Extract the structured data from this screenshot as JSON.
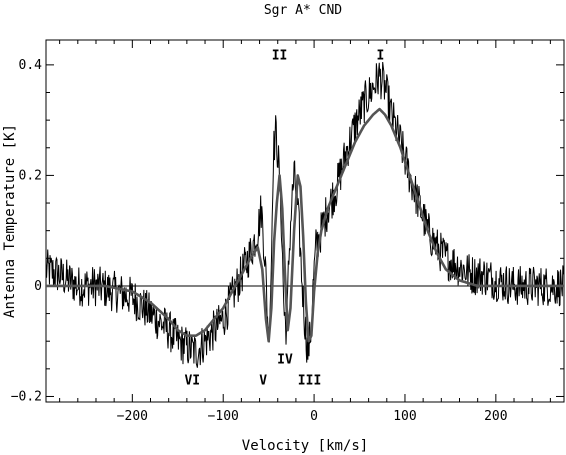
{
  "chart_data": {
    "type": "line",
    "title": "Sgr A* CND",
    "xlabel": "Velocity  [km/s]",
    "ylabel": "Antenna Temperature [K]",
    "xlim": [
      -295,
      275
    ],
    "ylim": [
      -0.21,
      0.445
    ],
    "x_ticks": [
      -200,
      -100,
      0,
      100,
      200
    ],
    "x_tick_labels": [
      "−200",
      "−100",
      "0",
      "100",
      "200"
    ],
    "y_ticks": [
      -0.2,
      0,
      0.2,
      0.4
    ],
    "y_tick_labels": [
      "−0.2",
      "0",
      "0.2",
      "0.4"
    ],
    "zero_line": true,
    "grid": false,
    "series": [
      {
        "role": "observed spectrum",
        "color": "#000000",
        "style": "noisy histogram-like line",
        "x": [
          -295,
          -280,
          -260,
          -240,
          -220,
          -200,
          -180,
          -160,
          -150,
          -140,
          -130,
          -120,
          -110,
          -100,
          -90,
          -80,
          -70,
          -62,
          -58,
          -54,
          -50,
          -47,
          -45,
          -42,
          -39,
          -36,
          -33,
          -30,
          -28,
          -25,
          -22,
          -19,
          -16,
          -13,
          -10,
          -7,
          -4,
          -1,
          2,
          8,
          15,
          25,
          35,
          45,
          55,
          65,
          72,
          78,
          85,
          95,
          105,
          115,
          125,
          135,
          145,
          155,
          165,
          175,
          185,
          200,
          220,
          240,
          260,
          275
        ],
        "y": [
          0.03,
          0.02,
          0.0,
          0.0,
          -0.01,
          -0.02,
          -0.05,
          -0.08,
          -0.1,
          -0.11,
          -0.12,
          -0.1,
          -0.08,
          -0.06,
          -0.02,
          0.02,
          0.06,
          0.1,
          0.14,
          0.05,
          -0.1,
          0.04,
          0.24,
          0.28,
          0.22,
          0.12,
          -0.05,
          -0.08,
          0.04,
          0.14,
          0.2,
          0.16,
          0.09,
          0.0,
          -0.07,
          -0.12,
          -0.09,
          0.0,
          0.07,
          0.1,
          0.14,
          0.18,
          0.24,
          0.29,
          0.33,
          0.36,
          0.38,
          0.36,
          0.31,
          0.26,
          0.2,
          0.15,
          0.1,
          0.07,
          0.05,
          0.04,
          0.03,
          0.02,
          0.02,
          0.01,
          0.0,
          0.0,
          0.0,
          0.0
        ]
      },
      {
        "role": "gaussian fit",
        "color": "#555555",
        "style": "thick smooth line",
        "x": [
          -295,
          -260,
          -230,
          -200,
          -180,
          -160,
          -150,
          -140,
          -130,
          -120,
          -110,
          -100,
          -90,
          -80,
          -70,
          -62,
          -57,
          -53,
          -50,
          -47,
          -44,
          -41,
          -38,
          -35,
          -32,
          -29,
          -26,
          -22,
          -18,
          -15,
          -12,
          -9,
          -6,
          -3,
          0,
          4,
          8,
          15,
          25,
          35,
          45,
          55,
          65,
          72,
          78,
          85,
          95,
          105,
          115,
          125,
          135,
          145,
          160,
          180,
          200,
          230,
          275
        ],
        "y": [
          0.0,
          0.0,
          0.0,
          -0.01,
          -0.03,
          -0.06,
          -0.08,
          -0.09,
          -0.09,
          -0.08,
          -0.06,
          -0.04,
          -0.01,
          0.02,
          0.05,
          0.07,
          0.03,
          -0.06,
          -0.1,
          -0.04,
          0.08,
          0.15,
          0.2,
          0.14,
          0.02,
          -0.08,
          -0.04,
          0.1,
          0.2,
          0.18,
          0.09,
          -0.03,
          -0.1,
          -0.09,
          -0.01,
          0.06,
          0.1,
          0.14,
          0.18,
          0.22,
          0.26,
          0.29,
          0.31,
          0.32,
          0.31,
          0.29,
          0.25,
          0.2,
          0.15,
          0.1,
          0.06,
          0.03,
          0.01,
          0.0,
          0.0,
          0.0,
          0.0
        ]
      }
    ],
    "annotations": [
      {
        "text": "I",
        "x": 73,
        "y": 0.41
      },
      {
        "text": "II",
        "x": -38,
        "y": 0.41
      },
      {
        "text": "III",
        "x": -5,
        "y": -0.178
      },
      {
        "text": "IV",
        "x": -32,
        "y": -0.14
      },
      {
        "text": "V",
        "x": -56,
        "y": -0.178
      },
      {
        "text": "VI",
        "x": -134,
        "y": -0.178
      }
    ]
  }
}
